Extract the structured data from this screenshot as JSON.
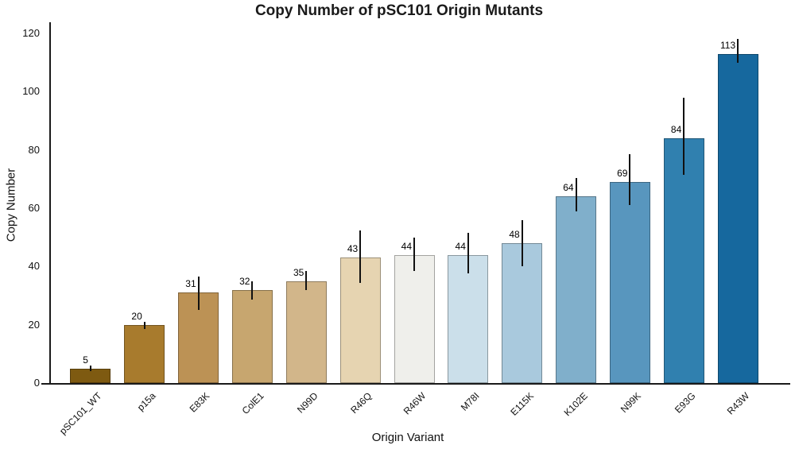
{
  "chart_data": {
    "type": "bar",
    "title": "Copy Number of pSC101 Origin Mutants",
    "xlabel": "Origin Variant",
    "ylabel": "Copy Number",
    "categories": [
      "pSC101_WT",
      "p15a",
      "E83K",
      "ColE1",
      "N99D",
      "R46Q",
      "R46W",
      "M78I",
      "E115K",
      "K102E",
      "N99K",
      "E93G",
      "R43W"
    ],
    "values": [
      5,
      20,
      31,
      32,
      35,
      43,
      44,
      44,
      48,
      64,
      69,
      84,
      113
    ],
    "error_low": [
      4,
      18.5,
      25,
      28.5,
      32,
      34.5,
      38.5,
      37.5,
      40,
      59,
      61,
      71.5,
      110
    ],
    "error_high": [
      6,
      21,
      36.5,
      35,
      38.5,
      52.5,
      50,
      51.5,
      56,
      70.5,
      78.5,
      98,
      118
    ],
    "bar_colors": [
      "#7E5A11",
      "#A87B2D",
      "#BC9255",
      "#C7A66F",
      "#D2B68A",
      "#E6D4B1",
      "#EFEFEB",
      "#CBDFEA",
      "#A9C9DD",
      "#80AFCB",
      "#5896BE",
      "#3080AF",
      "#16689E"
    ],
    "yticks": [
      0,
      20,
      40,
      60,
      80,
      100,
      120
    ],
    "ylim": [
      0,
      124
    ],
    "grid": "off",
    "legend": "none",
    "axis_color": "#1a1a1a",
    "error_bar_color": "#111111",
    "background_color": "#ffffff"
  }
}
